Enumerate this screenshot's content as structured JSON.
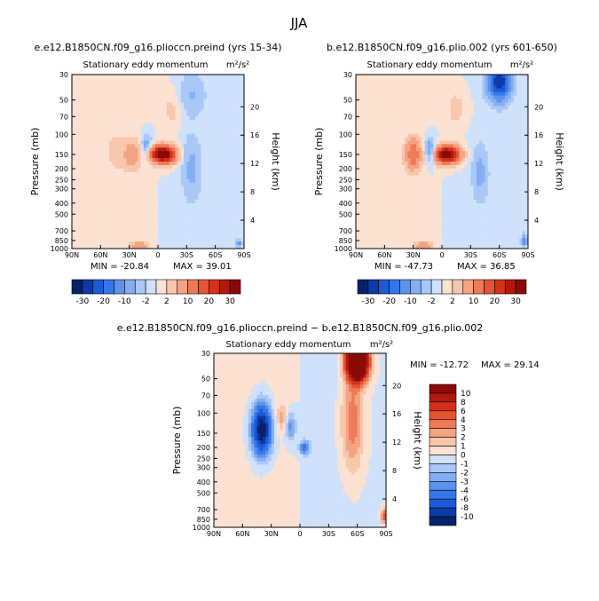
{
  "page": {
    "season": "JJA"
  },
  "chart_data": [
    {
      "type": "heatmap",
      "title": "e.e12.B1850CN.f09_g16.plioccn.preind (yrs 15-34)",
      "subtitle_left": "Stationary eddy momentum",
      "subtitle_units": "m²/s²",
      "xlabel": "",
      "ylabel": "Pressure (mb)",
      "ylabel_right": "Height (km)",
      "x_ticks": [
        "90N",
        "60N",
        "30N",
        "0",
        "30S",
        "60S",
        "90S"
      ],
      "y_ticks": [
        "30",
        "50",
        "70",
        "100",
        "150",
        "200",
        "250",
        "300",
        "400",
        "500",
        "700",
        "850",
        "1000"
      ],
      "height_ticks": [
        "20",
        "16",
        "12",
        "8",
        "4"
      ],
      "min_label": "MIN = -20.84",
      "max_label": "MAX = 39.01",
      "colorbar_labels": [
        "-30",
        "-20",
        "-10",
        "-2",
        "2",
        "10",
        "20",
        "30"
      ],
      "features": [
        {
          "lat": -5,
          "p": 150,
          "value": 39,
          "sx": 9,
          "sy": 0.12
        },
        {
          "lat": 27,
          "p": 150,
          "value": 9,
          "sx": 6,
          "sy": 0.2
        },
        {
          "lat": 12,
          "p": 130,
          "value": -8,
          "sx": 4,
          "sy": 0.18
        },
        {
          "lat": -35,
          "p": 200,
          "value": -6,
          "sx": 7,
          "sy": 0.45
        },
        {
          "lat": -35,
          "p": 45,
          "value": -5,
          "sx": 10,
          "sy": 0.3
        },
        {
          "lat": 20,
          "p": 950,
          "value": 10,
          "sx": 6,
          "sy": 0.06
        },
        {
          "lat": 45,
          "p": 140,
          "value": 2.5,
          "sx": 8,
          "sy": 0.35
        },
        {
          "lat": -15,
          "p": 60,
          "value": 3,
          "sx": 8,
          "sy": 0.3
        },
        {
          "lat": -85,
          "p": 900,
          "value": -12,
          "sx": 2,
          "sy": 0.05
        }
      ]
    },
    {
      "type": "heatmap",
      "title": "b.e12.B1850CN.f09_g16.plio.002 (yrs 601-650)",
      "subtitle_left": "Stationary eddy momentum",
      "subtitle_units": "m²/s²",
      "xlabel": "",
      "ylabel": "Pressure (mb)",
      "ylabel_right": "Height (km)",
      "x_ticks": [
        "90N",
        "60N",
        "30N",
        "0",
        "30S",
        "60S",
        "90S"
      ],
      "y_ticks": [
        "30",
        "50",
        "70",
        "100",
        "150",
        "200",
        "250",
        "300",
        "400",
        "500",
        "700",
        "850",
        "1000"
      ],
      "height_ticks": [
        "20",
        "16",
        "12",
        "8",
        "4"
      ],
      "min_label": "MIN = -47.73",
      "max_label": "MAX = 36.85",
      "colorbar_labels": [
        "-30",
        "-20",
        "-10",
        "-2",
        "2",
        "10",
        "20",
        "30"
      ],
      "features": [
        {
          "lat": -5,
          "p": 150,
          "value": 37,
          "sx": 9,
          "sy": 0.12
        },
        {
          "lat": 30,
          "p": 150,
          "value": 14,
          "sx": 6,
          "sy": 0.22
        },
        {
          "lat": 12,
          "p": 140,
          "value": -12,
          "sx": 4,
          "sy": 0.16
        },
        {
          "lat": -60,
          "p": 35,
          "value": -30,
          "sx": 8,
          "sy": 0.25
        },
        {
          "lat": -40,
          "p": 220,
          "value": -6,
          "sx": 6,
          "sy": 0.4
        },
        {
          "lat": 20,
          "p": 950,
          "value": 10,
          "sx": 6,
          "sy": 0.06
        },
        {
          "lat": -15,
          "p": 60,
          "value": 3,
          "sx": 8,
          "sy": 0.3
        },
        {
          "lat": -86,
          "p": 850,
          "value": -15,
          "sx": 2,
          "sy": 0.08
        }
      ]
    },
    {
      "type": "heatmap",
      "title": "e.e12.B1850CN.f09_g16.plioccn.preind − b.e12.B1850CN.f09_g16.plio.002",
      "subtitle_left": "Stationary eddy momentum",
      "subtitle_units": "m²/s²",
      "xlabel": "",
      "ylabel": "Pressure (mb)",
      "ylabel_right": "Height (km)",
      "x_ticks": [
        "90N",
        "60N",
        "30N",
        "0",
        "30S",
        "60S",
        "90S"
      ],
      "y_ticks": [
        "30",
        "50",
        "70",
        "100",
        "150",
        "200",
        "250",
        "300",
        "400",
        "500",
        "700",
        "850",
        "1000"
      ],
      "height_ticks": [
        "20",
        "16",
        "12",
        "8",
        "4"
      ],
      "min_label": "MIN = -12.72",
      "max_label": "MAX =  29.14",
      "colorbar_labels": [
        "10",
        "8",
        "6",
        "4",
        "3",
        "2",
        "1",
        "0",
        "-1",
        "-2",
        "-3",
        "-4",
        "-6",
        "-8",
        "-10"
      ],
      "features": [
        {
          "lat": -60,
          "p": 35,
          "value": 29,
          "sx": 7,
          "sy": 0.25
        },
        {
          "lat": -55,
          "p": 120,
          "value": 4,
          "sx": 8,
          "sy": 0.7
        },
        {
          "lat": 40,
          "p": 140,
          "value": -12,
          "sx": 7,
          "sy": 0.35
        },
        {
          "lat": 10,
          "p": 130,
          "value": -4,
          "sx": 4,
          "sy": 0.2
        },
        {
          "lat": -5,
          "p": 200,
          "value": -5,
          "sx": 4,
          "sy": 0.1
        },
        {
          "lat": 18,
          "p": 110,
          "value": 2.5,
          "sx": 5,
          "sy": 0.2
        },
        {
          "lat": -88,
          "p": 800,
          "value": 6,
          "sx": 2,
          "sy": 0.1
        }
      ]
    }
  ]
}
